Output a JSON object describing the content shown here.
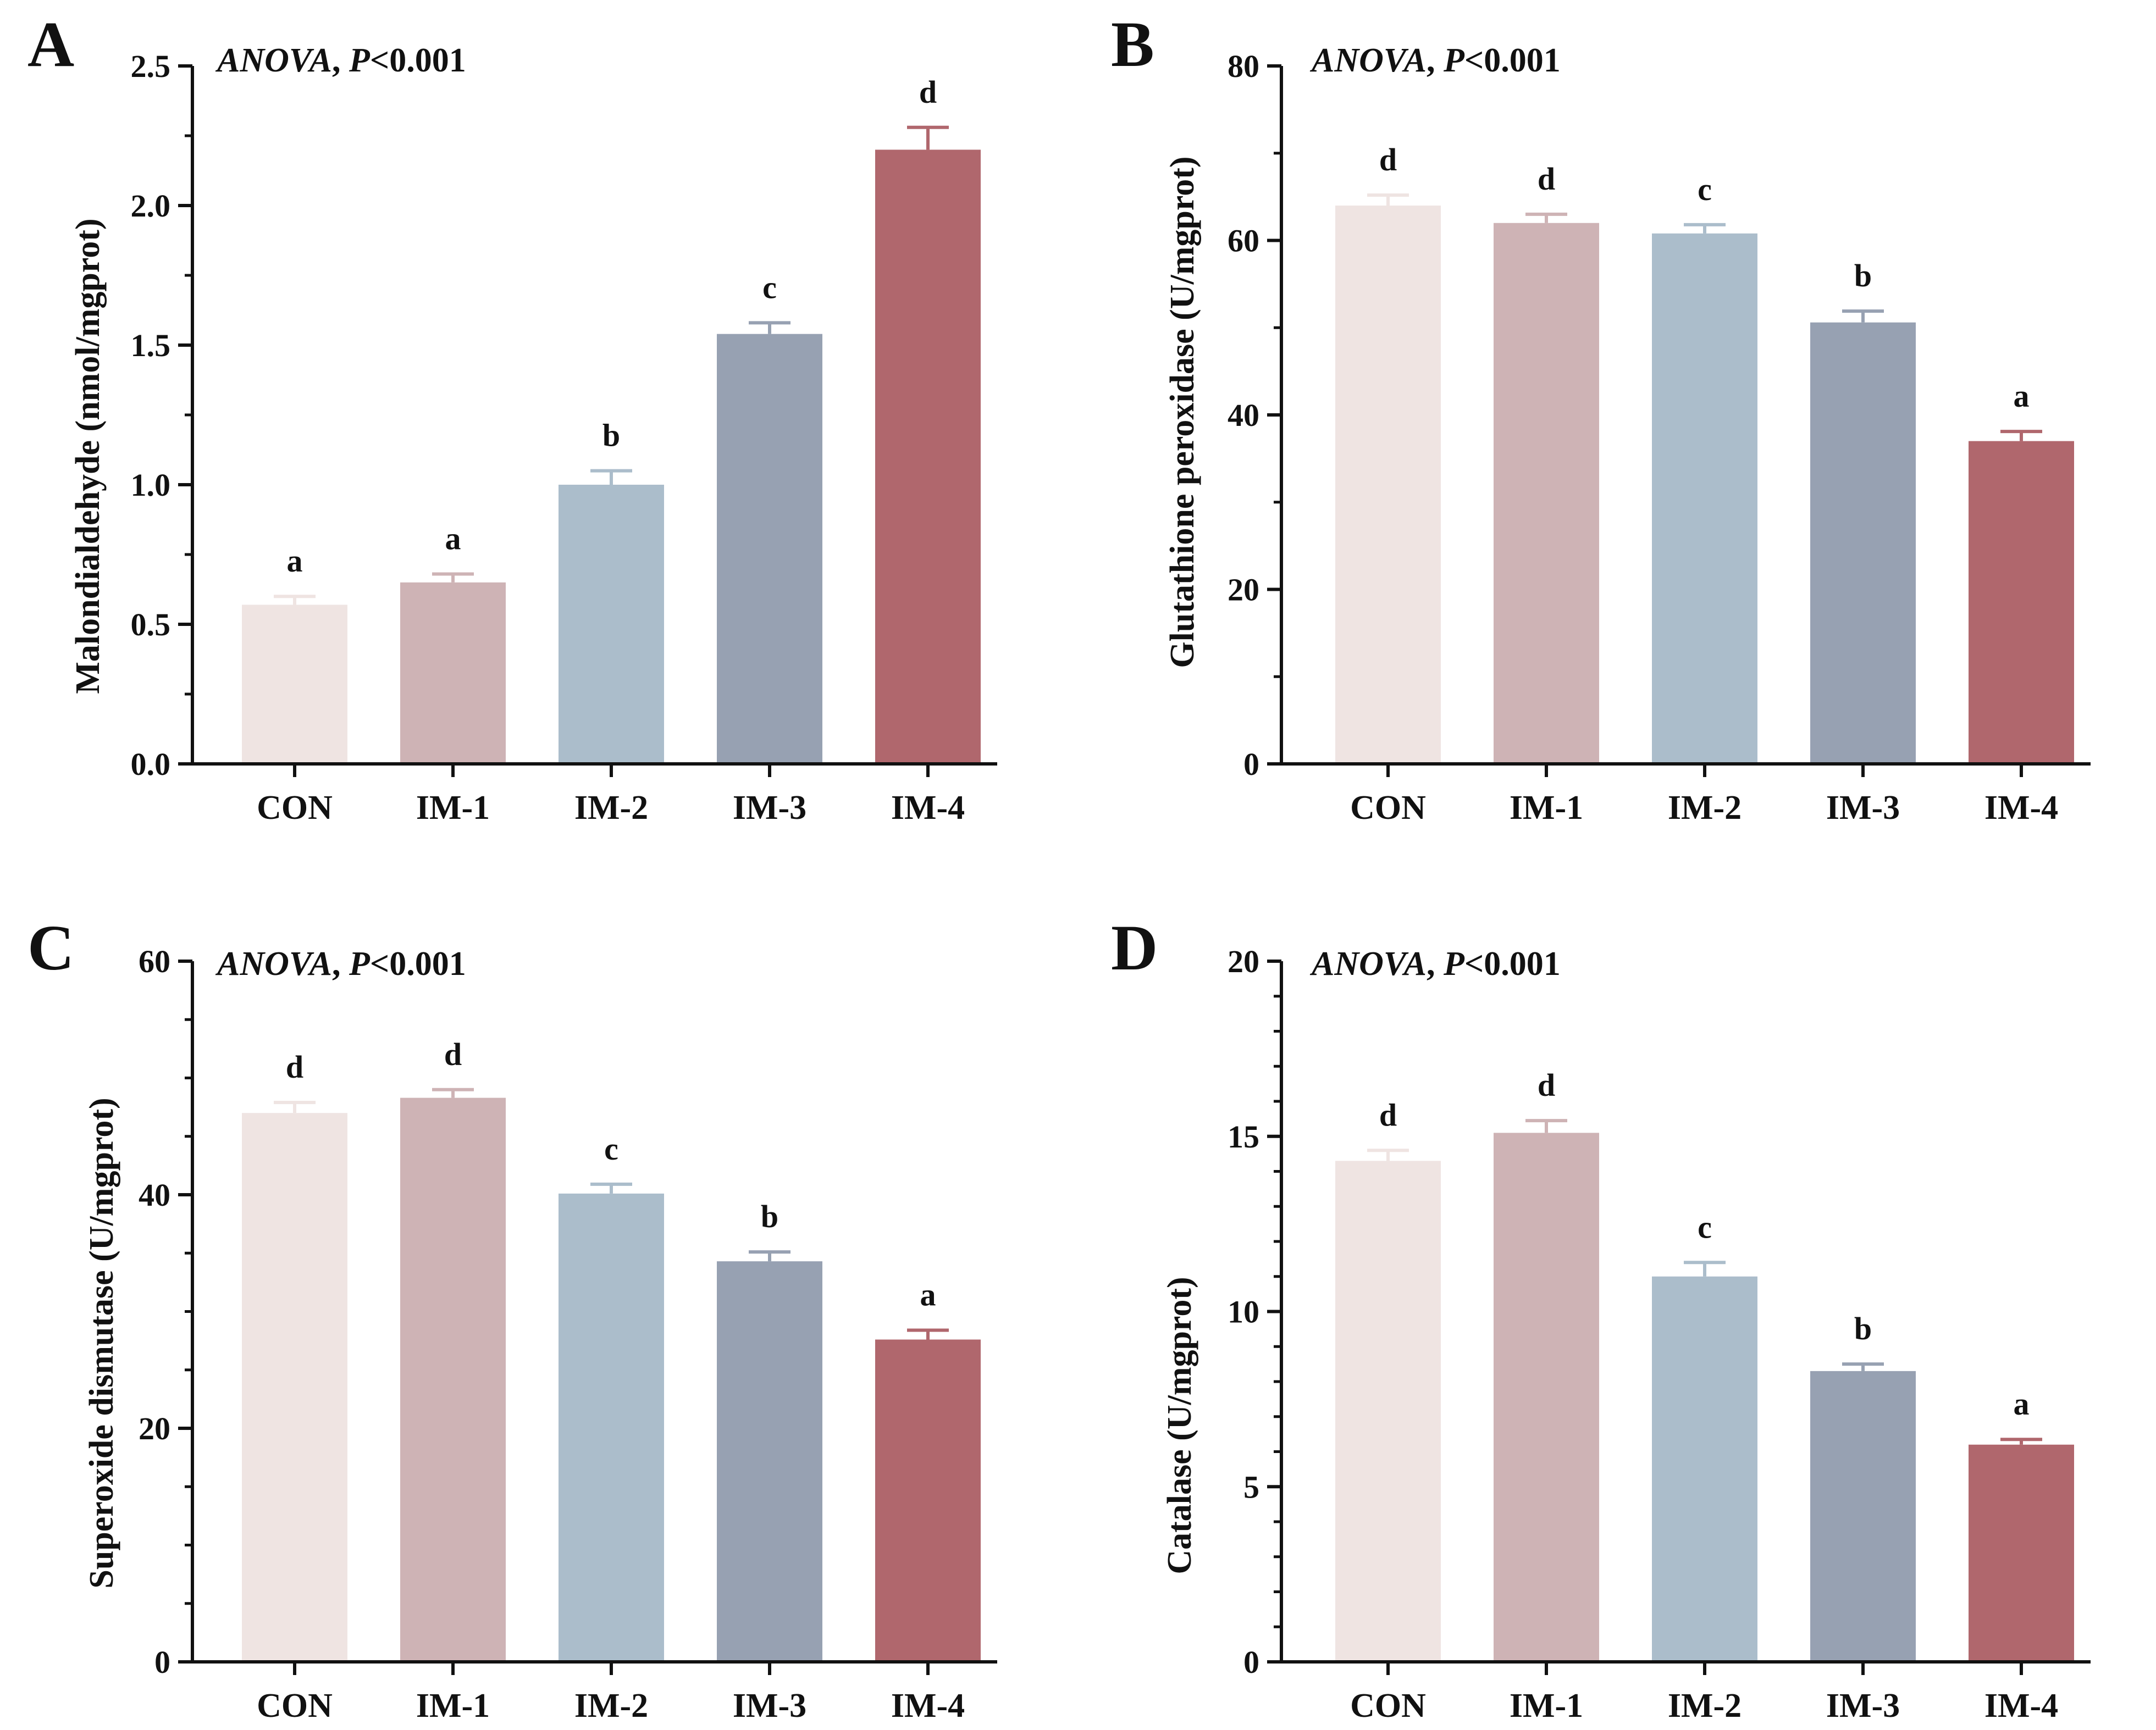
{
  "figure": {
    "categories": [
      "CON",
      "IM-1",
      "IM-2",
      "IM-3",
      "IM-4"
    ],
    "colors": [
      "#efe4e2",
      "#ceb3b5",
      "#abbdcb",
      "#97a1b2",
      "#b0676d"
    ],
    "axis_color": "#111111"
  },
  "chart_data": [
    {
      "panel": "A",
      "type": "bar",
      "title": "",
      "note_italic": "ANOVA",
      "note_rest": ", ",
      "note_p": "P",
      "note_val": "<0.001",
      "xlabel": "",
      "ylabel": "Malondialdehyde (nmol/mgprot)",
      "categories": [
        "CON",
        "IM-1",
        "IM-2",
        "IM-3",
        "IM-4"
      ],
      "values": [
        0.57,
        0.65,
        1.0,
        1.54,
        2.2
      ],
      "errors": [
        0.03,
        0.03,
        0.05,
        0.04,
        0.08
      ],
      "letters": [
        "a",
        "a",
        "b",
        "c",
        "d"
      ],
      "ylim": [
        0,
        2.5
      ],
      "yticks": [
        0,
        0.5,
        1.0,
        1.5,
        2.0,
        2.5
      ],
      "ytick_labels": [
        "0.0",
        "0.5",
        "1.0",
        "1.5",
        "2.0",
        "2.5"
      ],
      "minor_per_major": 1
    },
    {
      "panel": "B",
      "type": "bar",
      "title": "",
      "note_italic": "ANOVA",
      "note_rest": ", ",
      "note_p": "P",
      "note_val": "<0.001",
      "xlabel": "",
      "ylabel": "Glutathione peroxidase (U/mgprot)",
      "categories": [
        "CON",
        "IM-1",
        "IM-2",
        "IM-3",
        "IM-4"
      ],
      "values": [
        64.0,
        62.0,
        60.8,
        50.6,
        37.0
      ],
      "errors": [
        1.2,
        1.0,
        1.0,
        1.3,
        1.1
      ],
      "letters": [
        "d",
        "d",
        "c",
        "b",
        "a"
      ],
      "ylim": [
        0,
        80
      ],
      "yticks": [
        0,
        20,
        40,
        60,
        80
      ],
      "ytick_labels": [
        "0",
        "20",
        "40",
        "60",
        "80"
      ],
      "minor_per_major": 1
    },
    {
      "panel": "C",
      "type": "bar",
      "title": "",
      "note_italic": "ANOVA",
      "note_rest": ", ",
      "note_p": "P",
      "note_val": "<0.001",
      "xlabel": "",
      "ylabel": "Superoxide dismutase (U/mgprot)",
      "categories": [
        "CON",
        "IM-1",
        "IM-2",
        "IM-3",
        "IM-4"
      ],
      "values": [
        47.0,
        48.3,
        40.1,
        34.3,
        27.6
      ],
      "errors": [
        0.9,
        0.7,
        0.8,
        0.8,
        0.8
      ],
      "letters": [
        "d",
        "d",
        "c",
        "b",
        "a"
      ],
      "ylim": [
        0,
        60
      ],
      "yticks": [
        0,
        20,
        40,
        60
      ],
      "ytick_labels": [
        "0",
        "20",
        "40",
        "60"
      ],
      "minor_per_major": 3
    },
    {
      "panel": "D",
      "type": "bar",
      "title": "",
      "note_italic": "ANOVA",
      "note_rest": ", ",
      "note_p": "P",
      "note_val": "<0.001",
      "xlabel": "",
      "ylabel": "Catalase (U/mgprot)",
      "categories": [
        "CON",
        "IM-1",
        "IM-2",
        "IM-3",
        "IM-4"
      ],
      "values": [
        14.3,
        15.1,
        11.0,
        8.3,
        6.2
      ],
      "errors": [
        0.3,
        0.35,
        0.4,
        0.2,
        0.15
      ],
      "letters": [
        "d",
        "d",
        "c",
        "b",
        "a"
      ],
      "ylim": [
        0,
        20
      ],
      "yticks": [
        0,
        5,
        10,
        15,
        20
      ],
      "ytick_labels": [
        "0",
        "5",
        "10",
        "15",
        "20"
      ],
      "minor_per_major": 4
    }
  ]
}
